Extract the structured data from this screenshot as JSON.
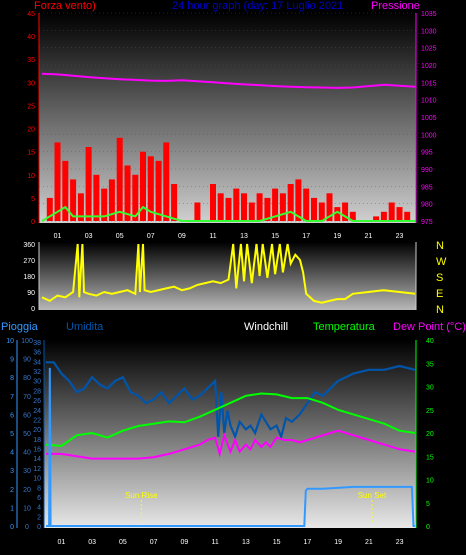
{
  "colors": {
    "wind": "#ff0000",
    "gust": "#33ff33",
    "pressure": "#ff00ff",
    "direction": "#ffff00",
    "rain": "#3399ff",
    "humidity": "#0055aa",
    "windchill": "#ffffff",
    "temperature": "#00ff00",
    "dew": "#ff00ff",
    "title": "#0000cc",
    "sunline": "#ffff00"
  },
  "top": {
    "left_label": "Forza vento)",
    "title": "24 hour graph (day:  17 Luglio 2021",
    "right_label": "Pressione"
  },
  "dir_labels": [
    "N",
    "W",
    "S",
    "E",
    "N"
  ],
  "bottom": {
    "labels": [
      "Pioggia",
      "Umidita",
      "Windchill",
      "Temperatura",
      "Dew Point (°C)"
    ],
    "sun_rise": "Sun Rise",
    "sun_set": "Sun Set"
  },
  "chart_data": [
    {
      "type": "bar",
      "title": "24 hour graph (day:  17 Luglio 2021",
      "x_ticks": [
        "01",
        "03",
        "05",
        "07",
        "09",
        "11",
        "13",
        "15",
        "17",
        "19",
        "21",
        "23"
      ],
      "y_left_label": "Forza vento)",
      "y_left_ticks": [
        "45",
        "40",
        "35",
        "30",
        "25",
        "20",
        "15",
        "10",
        "5",
        "0"
      ],
      "y_left_range": [
        0,
        45
      ],
      "y_right_label": "Pressione",
      "y_right_ticks": [
        "1035",
        "1030",
        "1025",
        "1020",
        "1015",
        "1010",
        "1005",
        "1000",
        "995",
        "990",
        "985",
        "980",
        "975"
      ],
      "y_right_range": [
        975,
        1035
      ],
      "series": [
        {
          "name": "Forza vento)",
          "kind": "bars",
          "x": [
            0.5,
            1.0,
            1.5,
            2.0,
            2.5,
            3.0,
            3.5,
            4.0,
            4.5,
            5.0,
            5.5,
            6.0,
            6.5,
            7.0,
            7.5,
            8.0,
            8.5,
            10.0,
            11.0,
            11.5,
            12.0,
            12.5,
            13.0,
            13.5,
            14.0,
            14.5,
            15.0,
            15.5,
            16.0,
            16.5,
            17.0,
            17.5,
            18.0,
            18.5,
            19.0,
            19.5,
            20.0,
            21.5,
            22.0,
            22.5,
            23.0,
            23.5
          ],
          "values": [
            5,
            17,
            13,
            9,
            6,
            16,
            10,
            7,
            9,
            18,
            12,
            10,
            15,
            14,
            13,
            17,
            8,
            4,
            8,
            6,
            5,
            7,
            6,
            4,
            6,
            5,
            7,
            6,
            8,
            9,
            7,
            5,
            4,
            6,
            3,
            4,
            2,
            1,
            2,
            4,
            3,
            2
          ]
        },
        {
          "name": "Wind gust",
          "kind": "line",
          "x": [
            0,
            1,
            1.5,
            2,
            3,
            4,
            5,
            6,
            6.5,
            7,
            8,
            9,
            10,
            11,
            12,
            13,
            14,
            15,
            16,
            16.5,
            17,
            18,
            19,
            20,
            21,
            22,
            23,
            24
          ],
          "values": [
            0,
            2,
            3,
            1,
            1,
            1,
            2,
            1,
            3,
            2,
            1,
            0,
            0,
            0,
            0,
            0,
            0,
            1,
            2,
            1,
            0,
            0,
            2,
            0,
            0,
            0,
            0,
            0
          ]
        },
        {
          "name": "Pressione",
          "kind": "line",
          "x": [
            0,
            1,
            2,
            3,
            4,
            5,
            6,
            7,
            8,
            9,
            10,
            11,
            12,
            13,
            14,
            15,
            16,
            17,
            18,
            19,
            20,
            21,
            22,
            23,
            24
          ],
          "values": [
            1017.5,
            1017.3,
            1016.9,
            1016.5,
            1016.2,
            1015.9,
            1015.7,
            1015.5,
            1015.4,
            1015.6,
            1015.3,
            1015.0,
            1014.7,
            1014.4,
            1014.2,
            1013.9,
            1013.7,
            1013.6,
            1013.5,
            1013.4,
            1013.5,
            1013.9,
            1014.3,
            1014.0,
            1013.7
          ]
        }
      ]
    },
    {
      "type": "line",
      "y_ticks": [
        "360",
        "270",
        "180",
        "90",
        "0"
      ],
      "y_range": [
        0,
        360
      ],
      "y_right_labels": [
        "N",
        "W",
        "S",
        "E",
        "N"
      ],
      "series": [
        {
          "name": "Wind direction",
          "x": [
            0,
            0.5,
            1,
            1.5,
            2,
            2.3,
            2.4,
            2.6,
            2.7,
            3,
            3.5,
            4,
            4.5,
            5,
            5.5,
            6,
            6.2,
            6.3,
            6.5,
            6.6,
            7,
            8,
            8.5,
            9,
            9.5,
            10,
            10.5,
            11,
            11.5,
            12,
            12.3,
            12.5,
            12.8,
            13,
            13.2,
            13.5,
            13.8,
            14,
            14.2,
            14.5,
            14.8,
            15,
            15.3,
            15.5,
            15.8,
            16,
            16.3,
            16.6,
            16.8,
            17,
            17.5,
            18,
            18.5,
            19,
            19.5,
            20,
            21,
            22,
            23,
            24
          ],
          "values": [
            60,
            40,
            70,
            60,
            90,
            360,
            60,
            360,
            90,
            80,
            70,
            90,
            80,
            90,
            100,
            80,
            360,
            90,
            360,
            100,
            90,
            110,
            120,
            100,
            110,
            130,
            140,
            150,
            140,
            160,
            360,
            110,
            360,
            150,
            360,
            140,
            360,
            180,
            360,
            170,
            360,
            190,
            360,
            200,
            360,
            250,
            300,
            270,
            200,
            80,
            40,
            30,
            40,
            50,
            50,
            80,
            90,
            100,
            90,
            80
          ]
        }
      ]
    },
    {
      "type": "line",
      "x_ticks": [
        "01",
        "03",
        "05",
        "07",
        "09",
        "11",
        "13",
        "15",
        "17",
        "19",
        "21",
        "23"
      ],
      "y_left_label": "Pioggia",
      "y_left_ticks": [
        "10",
        "9",
        "8",
        "7",
        "6",
        "5",
        "4",
        "3",
        "2",
        "1",
        "0"
      ],
      "y_left_range": [
        0,
        10
      ],
      "y_hum_label": "Umidita",
      "y_hum_ticks": [
        "100",
        "90",
        "80",
        "70",
        "60",
        "50",
        "40",
        "30",
        "20",
        "10",
        "0"
      ],
      "y_mid_ticks": [
        "38",
        "36",
        "34",
        "32",
        "30",
        "28",
        "26",
        "24",
        "22",
        "20",
        "18",
        "16",
        "14",
        "12",
        "10",
        "8",
        "6",
        "4",
        "2",
        "0"
      ],
      "y_right_label": "Dew Point (°C)",
      "y_right_ticks": [
        "40",
        "35",
        "30",
        "25",
        "20",
        "15",
        "10",
        "5",
        "0"
      ],
      "y_right_range": [
        0,
        40
      ],
      "series": [
        {
          "name": "Pioggia",
          "x": [
            0,
            0.2,
            0.25,
            0.3,
            2,
            4,
            6,
            8,
            10,
            12,
            14,
            16,
            16.8,
            16.9,
            17,
            18,
            20,
            22,
            23,
            23.8,
            23.9,
            24
          ],
          "values": [
            0,
            0,
            8.5,
            0,
            0,
            0,
            0,
            0,
            0,
            0,
            0,
            0,
            0,
            1.9,
            2.0,
            2.0,
            2.1,
            2.1,
            2.1,
            2.1,
            0,
            0
          ]
        },
        {
          "name": "Umidita",
          "x": [
            0,
            0.5,
            1,
            1.5,
            2,
            2.5,
            3,
            3.5,
            4,
            4.5,
            5,
            5.5,
            6,
            6.5,
            7,
            7.5,
            8,
            8.5,
            9,
            9.5,
            10,
            10.5,
            11,
            11.2,
            11.4,
            11.6,
            11.8,
            12,
            12.3,
            12.6,
            13,
            13.3,
            13.6,
            14,
            14.3,
            14.6,
            15,
            15.3,
            15.6,
            16,
            16.5,
            17,
            17.5,
            18,
            18.5,
            19,
            19.5,
            20,
            21,
            22,
            23,
            24
          ],
          "values": [
            88,
            88,
            82,
            78,
            72,
            74,
            80,
            76,
            74,
            78,
            80,
            72,
            70,
            66,
            68,
            72,
            66,
            70,
            74,
            68,
            70,
            74,
            78,
            48,
            72,
            50,
            62,
            54,
            48,
            56,
            52,
            54,
            50,
            60,
            56,
            52,
            54,
            48,
            58,
            56,
            60,
            66,
            72,
            70,
            74,
            78,
            80,
            82,
            84,
            84,
            86,
            84
          ]
        },
        {
          "name": "Temperatura",
          "x": [
            0,
            1,
            2,
            3,
            4,
            5,
            6,
            7,
            8,
            9,
            10,
            11,
            12,
            13,
            14,
            15,
            16,
            17,
            18,
            19,
            20,
            21,
            22,
            23,
            24
          ],
          "values": [
            17.5,
            17.2,
            19.5,
            20.0,
            19.0,
            20.5,
            21.5,
            22.0,
            22.5,
            22.3,
            23.5,
            25.0,
            26.5,
            28.0,
            28.5,
            28.3,
            27.5,
            27.5,
            26.5,
            25.0,
            24.0,
            23.0,
            22.0,
            20.5,
            20.0
          ]
        },
        {
          "name": "Dew Point (°C)",
          "x": [
            0,
            1,
            2,
            3,
            4,
            5,
            6,
            7,
            8,
            9,
            10,
            10.5,
            11,
            11.3,
            11.6,
            12,
            12.3,
            12.6,
            13,
            13.3,
            13.6,
            14,
            14.3,
            14.6,
            15,
            15.5,
            16,
            16.5,
            17,
            18,
            19,
            20,
            21,
            22,
            23,
            24
          ],
          "values": [
            15.5,
            15.5,
            15.0,
            14.5,
            14.5,
            14.5,
            14.5,
            14.8,
            15.5,
            16.5,
            17.5,
            18.5,
            19.0,
            15.5,
            19.5,
            16.0,
            18.5,
            16.0,
            17.5,
            16.5,
            18.5,
            17.0,
            18.0,
            17.0,
            19.0,
            18.5,
            18.5,
            18.0,
            18.5,
            19.5,
            20.5,
            19.5,
            18.5,
            17.5,
            16.5,
            16.0
          ]
        }
      ]
    }
  ]
}
